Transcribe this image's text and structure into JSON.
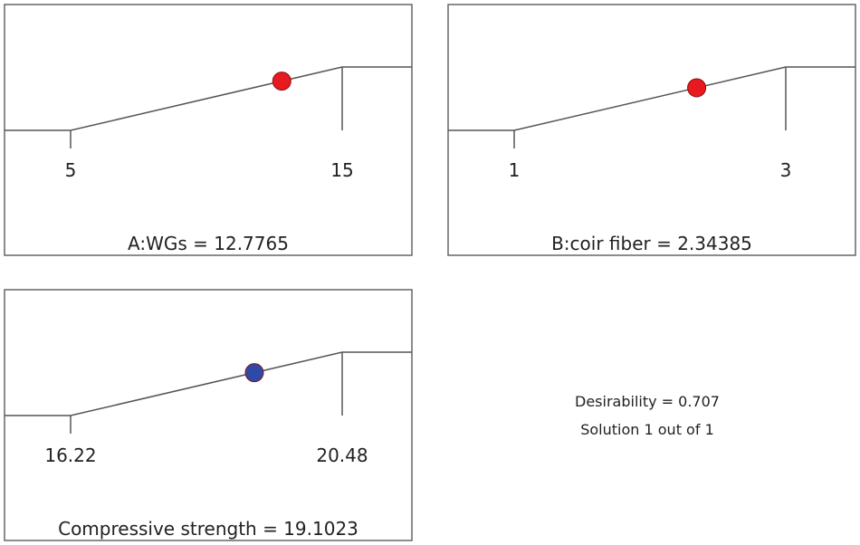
{
  "chart_data": {
    "type": "line",
    "title": "",
    "panels": [
      {
        "name": "A:WGs",
        "label": "A:WGs = 12.7765",
        "low": 5,
        "high": 15,
        "low_label": "5",
        "high_label": "15",
        "value": 12.7765,
        "point_color": "#e8191f"
      },
      {
        "name": "B:coir fiber",
        "label": "B:coir fiber = 2.34385",
        "low": 1,
        "high": 3,
        "low_label": "1",
        "high_label": "3",
        "value": 2.34385,
        "point_color": "#e8191f"
      },
      {
        "name": "Compressive strength",
        "label": "Compressive strength = 19.1023",
        "low": 16.22,
        "high": 20.48,
        "low_label": "16.22",
        "high_label": "20.48",
        "value": 19.1023,
        "point_color": "#2e4aa8"
      }
    ],
    "grid": false
  },
  "summary": {
    "desirability": "Desirability = 0.707",
    "solution": "Solution 1 out of 1"
  }
}
